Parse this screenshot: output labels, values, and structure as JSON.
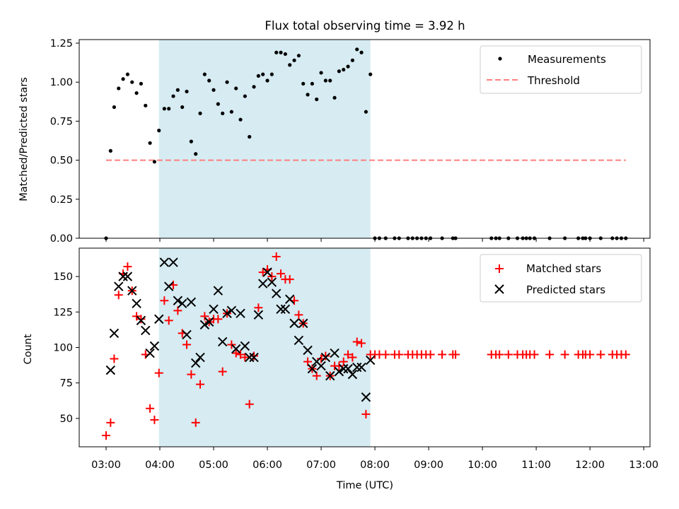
{
  "figure": {
    "title": "Flux total observing time = 3.92 h"
  },
  "chart_data": [
    {
      "type": "scatter",
      "ylabel": "Matched/Predicted stars",
      "xlabel": "",
      "xlim": [
        "02:30",
        "13:07"
      ],
      "ylim": [
        0,
        1.25
      ],
      "yticks": [
        "0.00",
        "0.25",
        "0.50",
        "0.75",
        "1.00",
        "1.25"
      ],
      "xtick_labels_shown": false,
      "grid": false,
      "legend_position": "upper right",
      "shaded_span": {
        "x0": "03:59",
        "x1": "07:55",
        "color": "#add8e6"
      },
      "threshold": {
        "name": "Threshold",
        "y": 0.5,
        "x0": "03:00",
        "x1": "12:40",
        "color": "#ff7f7f",
        "style": "dashed"
      },
      "series": [
        {
          "name": "Measurements",
          "marker": "dot",
          "color": "#000000",
          "points": [
            [
              "03:00",
              0.0
            ],
            [
              "03:05",
              0.56
            ],
            [
              "03:09",
              0.84
            ],
            [
              "03:14",
              0.96
            ],
            [
              "03:19",
              1.02
            ],
            [
              "03:24",
              1.05
            ],
            [
              "03:29",
              1.0
            ],
            [
              "03:34",
              0.93
            ],
            [
              "03:39",
              0.99
            ],
            [
              "03:44",
              0.85
            ],
            [
              "03:49",
              0.61
            ],
            [
              "03:54",
              0.49
            ],
            [
              "03:59",
              0.69
            ],
            [
              "04:05",
              0.83
            ],
            [
              "04:10",
              0.83
            ],
            [
              "04:15",
              0.91
            ],
            [
              "04:20",
              0.95
            ],
            [
              "04:25",
              0.84
            ],
            [
              "04:30",
              0.94
            ],
            [
              "04:35",
              0.62
            ],
            [
              "04:40",
              0.54
            ],
            [
              "04:45",
              0.8
            ],
            [
              "04:50",
              1.05
            ],
            [
              "04:55",
              1.01
            ],
            [
              "05:00",
              0.95
            ],
            [
              "05:05",
              0.86
            ],
            [
              "05:10",
              0.8
            ],
            [
              "05:15",
              1.0
            ],
            [
              "05:20",
              0.81
            ],
            [
              "05:25",
              0.96
            ],
            [
              "05:30",
              0.76
            ],
            [
              "05:35",
              0.91
            ],
            [
              "05:40",
              0.65
            ],
            [
              "05:45",
              0.97
            ],
            [
              "05:50",
              1.04
            ],
            [
              "05:55",
              1.05
            ],
            [
              "06:00",
              1.01
            ],
            [
              "06:05",
              1.05
            ],
            [
              "06:10",
              1.19
            ],
            [
              "06:15",
              1.19
            ],
            [
              "06:20",
              1.18
            ],
            [
              "06:25",
              1.11
            ],
            [
              "06:30",
              1.14
            ],
            [
              "06:35",
              1.17
            ],
            [
              "06:40",
              0.99
            ],
            [
              "06:45",
              0.92
            ],
            [
              "06:50",
              0.99
            ],
            [
              "06:55",
              0.89
            ],
            [
              "07:00",
              1.06
            ],
            [
              "07:05",
              1.01
            ],
            [
              "07:10",
              1.01
            ],
            [
              "07:15",
              0.9
            ],
            [
              "07:20",
              1.07
            ],
            [
              "07:25",
              1.08
            ],
            [
              "07:30",
              1.1
            ],
            [
              "07:35",
              1.14
            ],
            [
              "07:40",
              1.21
            ],
            [
              "07:45",
              1.19
            ],
            [
              "07:50",
              0.81
            ],
            [
              "07:55",
              1.05
            ],
            [
              "08:00",
              0.0
            ],
            [
              "08:05",
              0.0
            ],
            [
              "08:12",
              0.0
            ],
            [
              "08:22",
              0.0
            ],
            [
              "08:27",
              0.0
            ],
            [
              "08:37",
              0.0
            ],
            [
              "08:42",
              0.0
            ],
            [
              "08:47",
              0.0
            ],
            [
              "08:52",
              0.0
            ],
            [
              "08:57",
              0.0
            ],
            [
              "09:02",
              0.0
            ],
            [
              "09:15",
              0.0
            ],
            [
              "09:27",
              0.0
            ],
            [
              "09:30",
              0.0
            ],
            [
              "10:10",
              0.0
            ],
            [
              "10:15",
              0.0
            ],
            [
              "10:19",
              0.0
            ],
            [
              "10:29",
              0.0
            ],
            [
              "10:39",
              0.0
            ],
            [
              "10:45",
              0.0
            ],
            [
              "10:49",
              0.0
            ],
            [
              "10:53",
              0.0
            ],
            [
              "10:58",
              0.0
            ],
            [
              "11:15",
              0.0
            ],
            [
              "11:32",
              0.0
            ],
            [
              "11:47",
              0.0
            ],
            [
              "11:52",
              0.0
            ],
            [
              "11:55",
              0.0
            ],
            [
              "12:00",
              0.0
            ],
            [
              "12:12",
              0.0
            ],
            [
              "12:25",
              0.0
            ],
            [
              "12:30",
              0.0
            ],
            [
              "12:35",
              0.0
            ],
            [
              "12:40",
              0.0
            ]
          ]
        }
      ]
    },
    {
      "type": "scatter",
      "ylabel": "Count",
      "xlabel": "Time (UTC)",
      "xlim": [
        "02:30",
        "13:07"
      ],
      "ylim": [
        30,
        170
      ],
      "yticks": [
        "50",
        "75",
        "100",
        "125",
        "150"
      ],
      "xticks": [
        "03:00",
        "04:00",
        "05:00",
        "06:00",
        "07:00",
        "08:00",
        "09:00",
        "10:00",
        "11:00",
        "12:00",
        "13:00"
      ],
      "grid": false,
      "legend_position": "upper right",
      "shaded_span": {
        "x0": "03:59",
        "x1": "07:55",
        "color": "#add8e6"
      },
      "series": [
        {
          "name": "Matched stars",
          "marker": "plus",
          "color": "#ff0000",
          "points": [
            [
              "03:00",
              38
            ],
            [
              "03:05",
              47
            ],
            [
              "03:09",
              92
            ],
            [
              "03:14",
              137
            ],
            [
              "03:19",
              152
            ],
            [
              "03:24",
              157
            ],
            [
              "03:29",
              140
            ],
            [
              "03:34",
              122
            ],
            [
              "03:39",
              120
            ],
            [
              "03:44",
              95
            ],
            [
              "03:49",
              57
            ],
            [
              "03:54",
              49
            ],
            [
              "03:59",
              82
            ],
            [
              "04:05",
              133
            ],
            [
              "04:10",
              119
            ],
            [
              "04:15",
              144
            ],
            [
              "04:20",
              126
            ],
            [
              "04:25",
              110
            ],
            [
              "04:30",
              102
            ],
            [
              "04:35",
              81
            ],
            [
              "04:40",
              47
            ],
            [
              "04:45",
              74
            ],
            [
              "04:50",
              122
            ],
            [
              "04:55",
              118
            ],
            [
              "05:00",
              120
            ],
            [
              "05:05",
              120
            ],
            [
              "05:10",
              83
            ],
            [
              "05:15",
              124
            ],
            [
              "05:20",
              102
            ],
            [
              "05:25",
              96
            ],
            [
              "05:30",
              95
            ],
            [
              "05:35",
              93
            ],
            [
              "05:40",
              60
            ],
            [
              "05:45",
              94
            ],
            [
              "05:50",
              128
            ],
            [
              "05:55",
              153
            ],
            [
              "06:00",
              155
            ],
            [
              "06:05",
              150
            ],
            [
              "06:10",
              164
            ],
            [
              "06:15",
              152
            ],
            [
              "06:20",
              148
            ],
            [
              "06:25",
              148
            ],
            [
              "06:30",
              133
            ],
            [
              "06:35",
              123
            ],
            [
              "06:40",
              117
            ],
            [
              "06:45",
              90
            ],
            [
              "06:50",
              85
            ],
            [
              "06:55",
              80
            ],
            [
              "07:00",
              92
            ],
            [
              "07:05",
              94
            ],
            [
              "07:10",
              80
            ],
            [
              "07:15",
              87
            ],
            [
              "07:20",
              87
            ],
            [
              "07:25",
              90
            ],
            [
              "07:30",
              95
            ],
            [
              "07:35",
              93
            ],
            [
              "07:40",
              104
            ],
            [
              "07:45",
              103
            ],
            [
              "07:50",
              53
            ],
            [
              "07:55",
              95
            ],
            [
              "08:00",
              95
            ],
            [
              "08:05",
              95
            ],
            [
              "08:12",
              95
            ],
            [
              "08:22",
              95
            ],
            [
              "08:27",
              95
            ],
            [
              "08:37",
              95
            ],
            [
              "08:42",
              95
            ],
            [
              "08:47",
              95
            ],
            [
              "08:52",
              95
            ],
            [
              "08:57",
              95
            ],
            [
              "09:02",
              95
            ],
            [
              "09:15",
              95
            ],
            [
              "09:27",
              95
            ],
            [
              "09:30",
              95
            ],
            [
              "10:10",
              95
            ],
            [
              "10:15",
              95
            ],
            [
              "10:19",
              95
            ],
            [
              "10:29",
              95
            ],
            [
              "10:39",
              95
            ],
            [
              "10:45",
              95
            ],
            [
              "10:49",
              95
            ],
            [
              "10:53",
              95
            ],
            [
              "10:58",
              95
            ],
            [
              "11:15",
              95
            ],
            [
              "11:32",
              95
            ],
            [
              "11:47",
              95
            ],
            [
              "11:52",
              95
            ],
            [
              "11:55",
              95
            ],
            [
              "12:00",
              95
            ],
            [
              "12:12",
              95
            ],
            [
              "12:25",
              95
            ],
            [
              "12:30",
              95
            ],
            [
              "12:35",
              95
            ],
            [
              "12:40",
              95
            ]
          ]
        },
        {
          "name": "Predicted stars",
          "marker": "x",
          "color": "#000000",
          "points": [
            [
              "03:05",
              84
            ],
            [
              "03:09",
              110
            ],
            [
              "03:14",
              143
            ],
            [
              "03:19",
              150
            ],
            [
              "03:24",
              150
            ],
            [
              "03:29",
              140
            ],
            [
              "03:34",
              131
            ],
            [
              "03:39",
              119
            ],
            [
              "03:44",
              112
            ],
            [
              "03:49",
              96
            ],
            [
              "03:54",
              101
            ],
            [
              "03:59",
              120
            ],
            [
              "04:05",
              160
            ],
            [
              "04:10",
              143
            ],
            [
              "04:15",
              160
            ],
            [
              "04:20",
              133
            ],
            [
              "04:25",
              131
            ],
            [
              "04:30",
              109
            ],
            [
              "04:35",
              132
            ],
            [
              "04:40",
              89
            ],
            [
              "04:45",
              93
            ],
            [
              "04:50",
              116
            ],
            [
              "04:55",
              118
            ],
            [
              "05:00",
              127
            ],
            [
              "05:05",
              140
            ],
            [
              "05:10",
              104
            ],
            [
              "05:15",
              124
            ],
            [
              "05:20",
              126
            ],
            [
              "05:25",
              99
            ],
            [
              "05:30",
              124
            ],
            [
              "05:35",
              101
            ],
            [
              "05:40",
              93
            ],
            [
              "05:45",
              93
            ],
            [
              "05:50",
              123
            ],
            [
              "05:55",
              145
            ],
            [
              "06:00",
              153
            ],
            [
              "06:05",
              146
            ],
            [
              "06:10",
              138
            ],
            [
              "06:15",
              127
            ],
            [
              "06:20",
              127
            ],
            [
              "06:25",
              134
            ],
            [
              "06:30",
              117
            ],
            [
              "06:35",
              105
            ],
            [
              "06:40",
              117
            ],
            [
              "06:45",
              98
            ],
            [
              "06:50",
              85
            ],
            [
              "06:55",
              90
            ],
            [
              "07:00",
              87
            ],
            [
              "07:05",
              93
            ],
            [
              "07:10",
              80
            ],
            [
              "07:15",
              96
            ],
            [
              "07:20",
              83
            ],
            [
              "07:25",
              85
            ],
            [
              "07:30",
              85
            ],
            [
              "07:35",
              81
            ],
            [
              "07:40",
              86
            ],
            [
              "07:45",
              86
            ],
            [
              "07:50",
              65
            ],
            [
              "07:55",
              91
            ]
          ]
        }
      ]
    }
  ]
}
